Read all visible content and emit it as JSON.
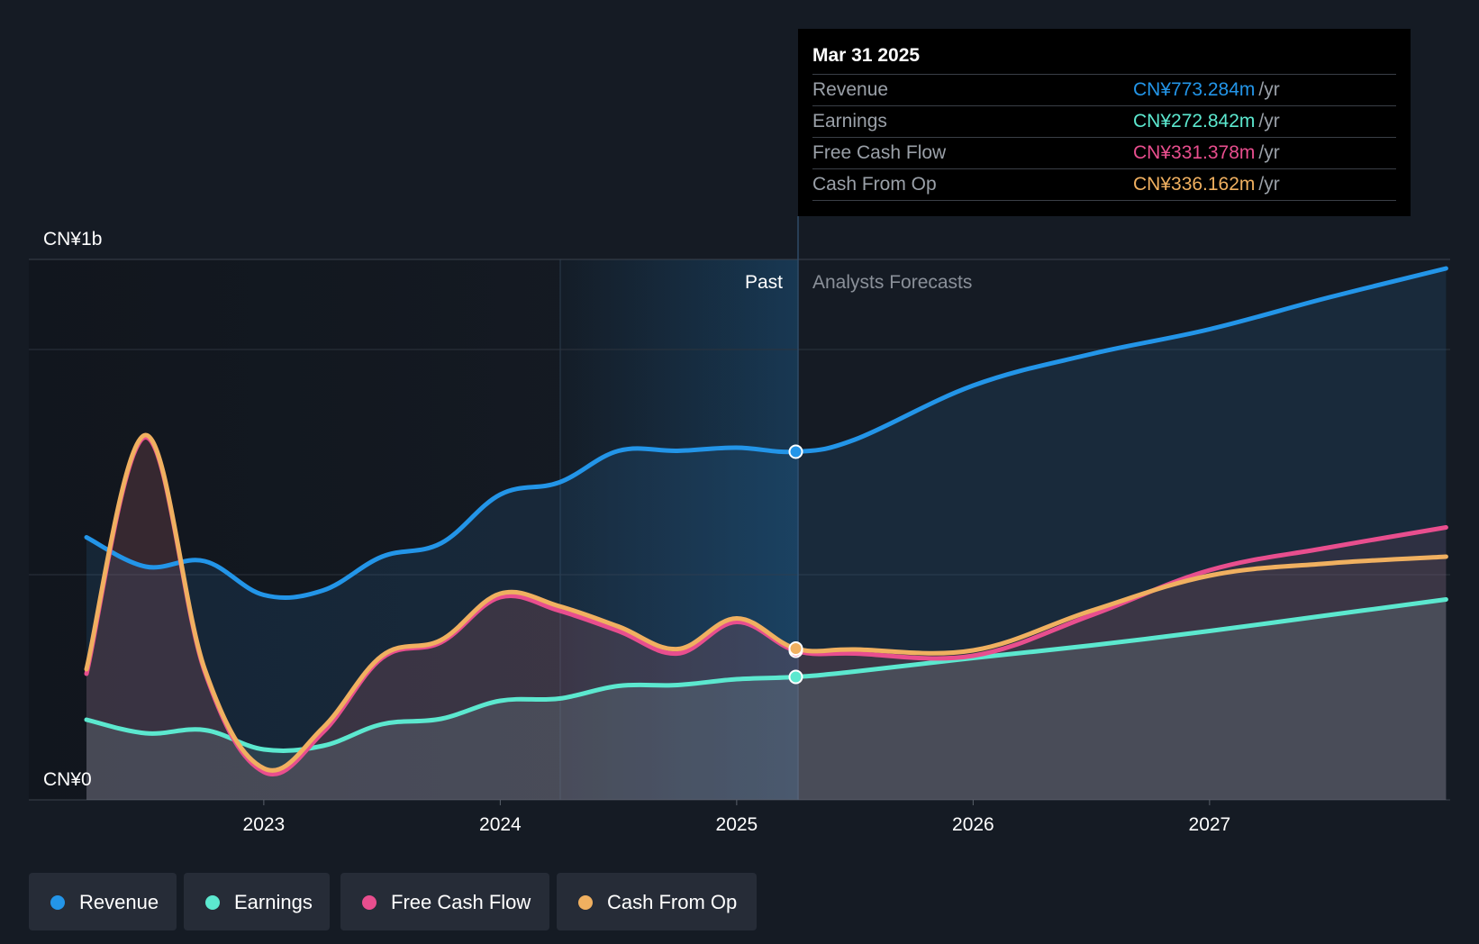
{
  "chart_data": {
    "type": "area",
    "title": "",
    "y_axis": {
      "top_label": "CN¥1b",
      "bottom_label": "CN¥0",
      "ylim": [
        0,
        1200
      ]
    },
    "x_axis": {
      "ticks": [
        "2023",
        "2024",
        "2025",
        "2026",
        "2027"
      ],
      "range": [
        "2022-03",
        "2027-12"
      ]
    },
    "grid": true,
    "regions": {
      "past_label": "Past",
      "forecast_label": "Analysts Forecasts",
      "divider": "2025-03-31"
    },
    "colors": {
      "revenue": "#2395e8",
      "earnings": "#5ce8cf",
      "free_cash_flow": "#e84e8e",
      "cash_from_op": "#f0b060"
    },
    "series": [
      {
        "name": "Revenue",
        "key": "revenue",
        "points": [
          [
            2022.25,
            583
          ],
          [
            2022.5,
            518
          ],
          [
            2022.75,
            530
          ],
          [
            2023.0,
            455
          ],
          [
            2023.25,
            465
          ],
          [
            2023.5,
            540
          ],
          [
            2023.75,
            570
          ],
          [
            2024.0,
            678
          ],
          [
            2024.25,
            705
          ],
          [
            2024.5,
            775
          ],
          [
            2024.75,
            775
          ],
          [
            2025.0,
            782
          ],
          [
            2025.25,
            773
          ],
          [
            2025.5,
            800
          ],
          [
            2026.0,
            920
          ],
          [
            2026.5,
            990
          ],
          [
            2027.0,
            1045
          ],
          [
            2027.5,
            1115
          ],
          [
            2028.0,
            1180
          ]
        ]
      },
      {
        "name": "Earnings",
        "key": "earnings",
        "points": [
          [
            2022.25,
            178
          ],
          [
            2022.5,
            148
          ],
          [
            2022.75,
            155
          ],
          [
            2023.0,
            112
          ],
          [
            2023.25,
            120
          ],
          [
            2023.5,
            168
          ],
          [
            2023.75,
            180
          ],
          [
            2024.0,
            220
          ],
          [
            2024.25,
            225
          ],
          [
            2024.5,
            253
          ],
          [
            2024.75,
            255
          ],
          [
            2025.0,
            268
          ],
          [
            2025.25,
            273
          ],
          [
            2025.5,
            285
          ],
          [
            2026.0,
            315
          ],
          [
            2026.5,
            343
          ],
          [
            2027.0,
            375
          ],
          [
            2027.5,
            410
          ],
          [
            2028.0,
            445
          ]
        ]
      },
      {
        "name": "Free Cash Flow",
        "key": "free_cash_flow",
        "points": [
          [
            2022.25,
            280
          ],
          [
            2022.5,
            805
          ],
          [
            2022.75,
            285
          ],
          [
            2023.0,
            62
          ],
          [
            2023.25,
            150
          ],
          [
            2023.5,
            315
          ],
          [
            2023.75,
            350
          ],
          [
            2024.0,
            450
          ],
          [
            2024.25,
            420
          ],
          [
            2024.5,
            375
          ],
          [
            2024.75,
            325
          ],
          [
            2025.0,
            395
          ],
          [
            2025.25,
            331
          ],
          [
            2025.5,
            325
          ],
          [
            2026.0,
            320
          ],
          [
            2026.5,
            410
          ],
          [
            2027.0,
            510
          ],
          [
            2027.5,
            560
          ],
          [
            2028.0,
            605
          ]
        ]
      },
      {
        "name": "Cash From Op",
        "key": "cash_from_op",
        "points": [
          [
            2022.25,
            290
          ],
          [
            2022.5,
            810
          ],
          [
            2022.75,
            290
          ],
          [
            2023.0,
            70
          ],
          [
            2023.25,
            160
          ],
          [
            2023.5,
            320
          ],
          [
            2023.75,
            355
          ],
          [
            2024.0,
            458
          ],
          [
            2024.25,
            430
          ],
          [
            2024.5,
            385
          ],
          [
            2024.75,
            335
          ],
          [
            2025.0,
            403
          ],
          [
            2025.25,
            336
          ],
          [
            2025.5,
            334
          ],
          [
            2026.0,
            332
          ],
          [
            2026.5,
            420
          ],
          [
            2027.0,
            498
          ],
          [
            2027.5,
            525
          ],
          [
            2028.0,
            540
          ]
        ]
      }
    ],
    "highlight_x": 2025.25
  },
  "tooltip": {
    "date": "Mar 31 2025",
    "unit": "/yr",
    "rows": [
      {
        "label": "Revenue",
        "value": "CN¥773.284m"
      },
      {
        "label": "Earnings",
        "value": "CN¥272.842m"
      },
      {
        "label": "Free Cash Flow",
        "value": "CN¥331.378m"
      },
      {
        "label": "Cash From Op",
        "value": "CN¥336.162m"
      }
    ]
  },
  "legend": [
    {
      "label": "Revenue"
    },
    {
      "label": "Earnings"
    },
    {
      "label": "Free Cash Flow"
    },
    {
      "label": "Cash From Op"
    }
  ]
}
